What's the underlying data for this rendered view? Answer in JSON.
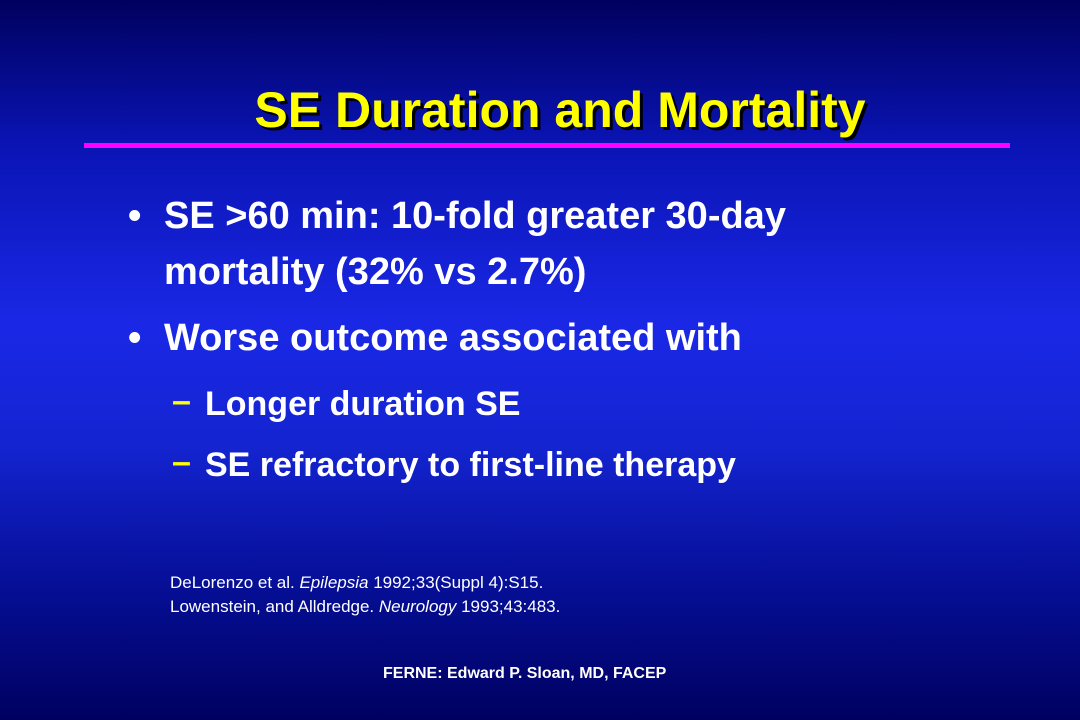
{
  "slide": {
    "title": "SE Duration and Mortality",
    "bullets": [
      {
        "marker": "•",
        "lines": [
          "SE >60 min:  10-fold greater 30-day",
          "mortality (32% vs 2.7%)"
        ]
      },
      {
        "marker": "•",
        "lines": [
          "Worse outcome associated with"
        ]
      }
    ],
    "sub_bullets": [
      {
        "marker": "–",
        "text": "Longer duration SE"
      },
      {
        "marker": "–",
        "text": "SE refractory to first-line therapy"
      }
    ],
    "references": [
      {
        "authors": "DeLorenzo et al. ",
        "journal": "Epilepsia",
        "citation": " 1992;33(Suppl 4):S15."
      },
      {
        "authors": "Lowenstein, and Alldredge. ",
        "journal": "Neurology",
        "citation": " 1993;43:483."
      }
    ],
    "footer": "FERNE:  Edward P. Sloan,  MD, FACEP"
  },
  "colors": {
    "background": "#1424d0",
    "title": "#ffff00",
    "rule": "#ff00ff",
    "text": "#ffffff",
    "dash": "#ffff00"
  }
}
